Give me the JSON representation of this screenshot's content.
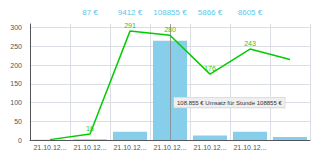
{
  "chart_data": {
    "type": "bar",
    "categories": [
      "21.10.12...",
      "21.10.12...",
      "21.10.12...",
      "21.10.12...",
      "21.10.12...",
      "21.10.12...",
      null
    ],
    "series": [
      {
        "type": "bar",
        "color": "#87CEEB",
        "values": [
          1,
          2,
          22,
          265,
          12,
          22,
          8
        ]
      },
      {
        "type": "line",
        "color": "#00cc00",
        "values": [
          1,
          16,
          291,
          280,
          176,
          243,
          215
        ],
        "data_labels": true,
        "value_labels": [
          null,
          "16",
          "291",
          "280",
          "176",
          "243",
          null
        ],
        "label_color": "#22cc22"
      }
    ],
    "ylim": [
      0,
      310
    ],
    "yticks": [
      0,
      50,
      100,
      150,
      200,
      250,
      300
    ],
    "grid": true,
    "vertical_line": {
      "x": 3,
      "color": "#888888"
    },
    "annotations": [
      {
        "x": 3,
        "y": 100,
        "text": "108.855 € Umsatz für Stunde 108855 €"
      }
    ],
    "top_labels": {
      "color": "#5bc8e8",
      "x": [
        1,
        2,
        3,
        4,
        5
      ],
      "texts": [
        "87 €",
        "9412 €",
        "108855 €",
        "5866 €",
        "8605 €"
      ]
    }
  }
}
